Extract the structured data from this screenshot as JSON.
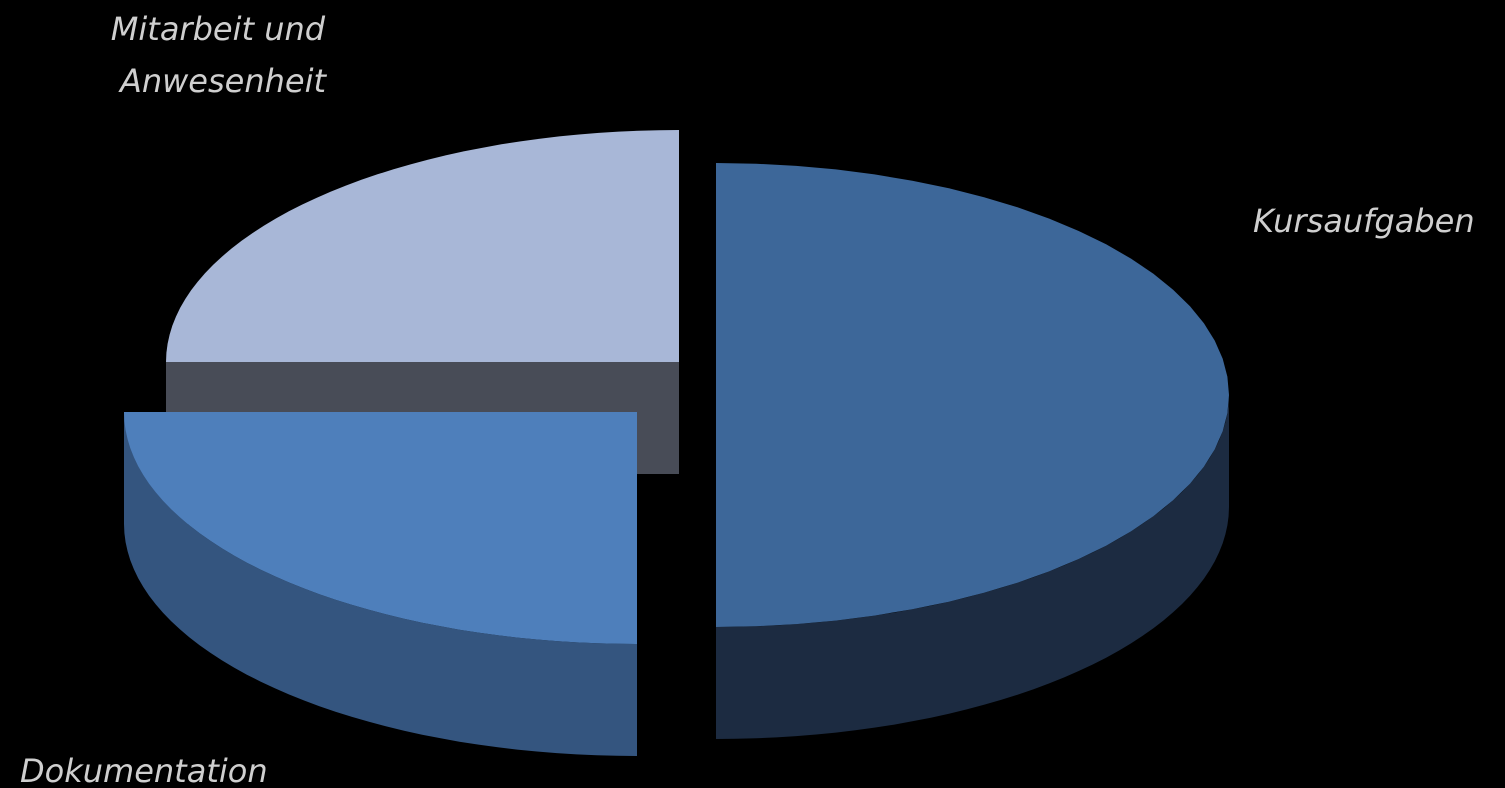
{
  "chart_data": {
    "type": "pie",
    "style": "3d-exploded",
    "title": "",
    "slices": [
      {
        "label": "Kursaufgaben",
        "value": 50,
        "color": "#3D6799",
        "side_color": "#1C2B41"
      },
      {
        "label": "Dokumentation",
        "value": 25,
        "color": "#4E7FBB",
        "side_color": "#34557F"
      },
      {
        "label": "Mitarbeit und Anwesenheit",
        "value": 25,
        "color": "#A8B7D7",
        "side_color": "#484C57"
      }
    ],
    "legend": "none",
    "data_labels": "category-names"
  }
}
